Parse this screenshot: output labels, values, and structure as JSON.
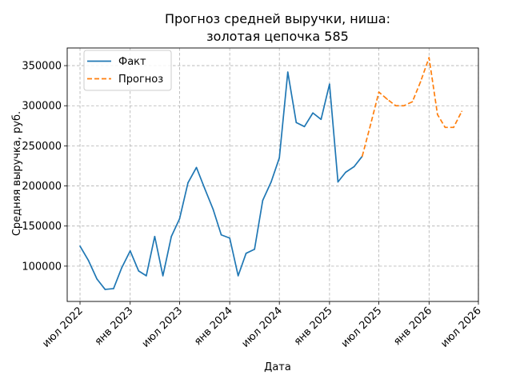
{
  "chart_data": {
    "type": "line",
    "title_lines": [
      "Прогноз средней выручки, ниша:",
      "золотая цепочка 585"
    ],
    "xlabel": "Дата",
    "ylabel": "Средняя выручка, руб.",
    "x_ticks": [
      {
        "date": "2022-07-01",
        "label": "июл 2022"
      },
      {
        "date": "2023-01-01",
        "label": "янв 2023"
      },
      {
        "date": "2023-07-01",
        "label": "июл 2023"
      },
      {
        "date": "2024-01-01",
        "label": "янв 2024"
      },
      {
        "date": "2024-07-01",
        "label": "июл 2024"
      },
      {
        "date": "2025-01-01",
        "label": "янв 2025"
      },
      {
        "date": "2025-07-01",
        "label": "июл 2025"
      },
      {
        "date": "2026-01-01",
        "label": "янв 2026"
      },
      {
        "date": "2026-07-01",
        "label": "июл 2026"
      }
    ],
    "y_ticks": [
      {
        "value": 100000,
        "label": "100000"
      },
      {
        "value": 150000,
        "label": "150000"
      },
      {
        "value": 200000,
        "label": "200000"
      },
      {
        "value": 250000,
        "label": "250000"
      },
      {
        "value": 300000,
        "label": "300000"
      },
      {
        "value": 350000,
        "label": "350000"
      }
    ],
    "xlim": [
      "2022-05-15",
      "2026-07-01"
    ],
    "ylim": [
      56000,
      372000
    ],
    "grid": true,
    "legend_position": "top-left",
    "series": [
      {
        "name": "Факт",
        "color": "#1f77b4",
        "style": "solid",
        "x": [
          "2022-07-01",
          "2022-08-01",
          "2022-09-01",
          "2022-10-01",
          "2022-11-01",
          "2022-12-01",
          "2023-01-01",
          "2023-02-01",
          "2023-03-01",
          "2023-04-01",
          "2023-05-01",
          "2023-06-01",
          "2023-07-01",
          "2023-08-01",
          "2023-09-01",
          "2023-10-01",
          "2023-11-01",
          "2023-12-01",
          "2024-01-01",
          "2024-02-01",
          "2024-03-01",
          "2024-04-01",
          "2024-05-01",
          "2024-06-01",
          "2024-07-01",
          "2024-08-01",
          "2024-09-01",
          "2024-10-01",
          "2024-11-01",
          "2024-12-01",
          "2025-01-01",
          "2025-02-01",
          "2025-03-01",
          "2025-04-01",
          "2025-05-01"
        ],
        "values": [
          125000,
          107000,
          84000,
          71000,
          72000,
          98000,
          119000,
          94000,
          88000,
          137000,
          88000,
          137000,
          159000,
          204000,
          223000,
          197000,
          171000,
          139000,
          135000,
          88000,
          116000,
          121000,
          182000,
          205000,
          235000,
          342000,
          279000,
          274000,
          291000,
          283000,
          327000,
          205000,
          217000,
          224000,
          237000
        ]
      },
      {
        "name": "Прогноз",
        "color": "#ff7f0e",
        "style": "dashed",
        "x": [
          "2025-05-01",
          "2025-06-01",
          "2025-07-01",
          "2025-08-01",
          "2025-09-01",
          "2025-10-01",
          "2025-11-01",
          "2025-12-01",
          "2026-01-01",
          "2026-02-01",
          "2026-03-01",
          "2026-04-01",
          "2026-05-01"
        ],
        "values": [
          237000,
          277000,
          317000,
          308000,
          300000,
          300000,
          305000,
          330000,
          360000,
          289000,
          273000,
          273000,
          293000
        ]
      }
    ]
  }
}
